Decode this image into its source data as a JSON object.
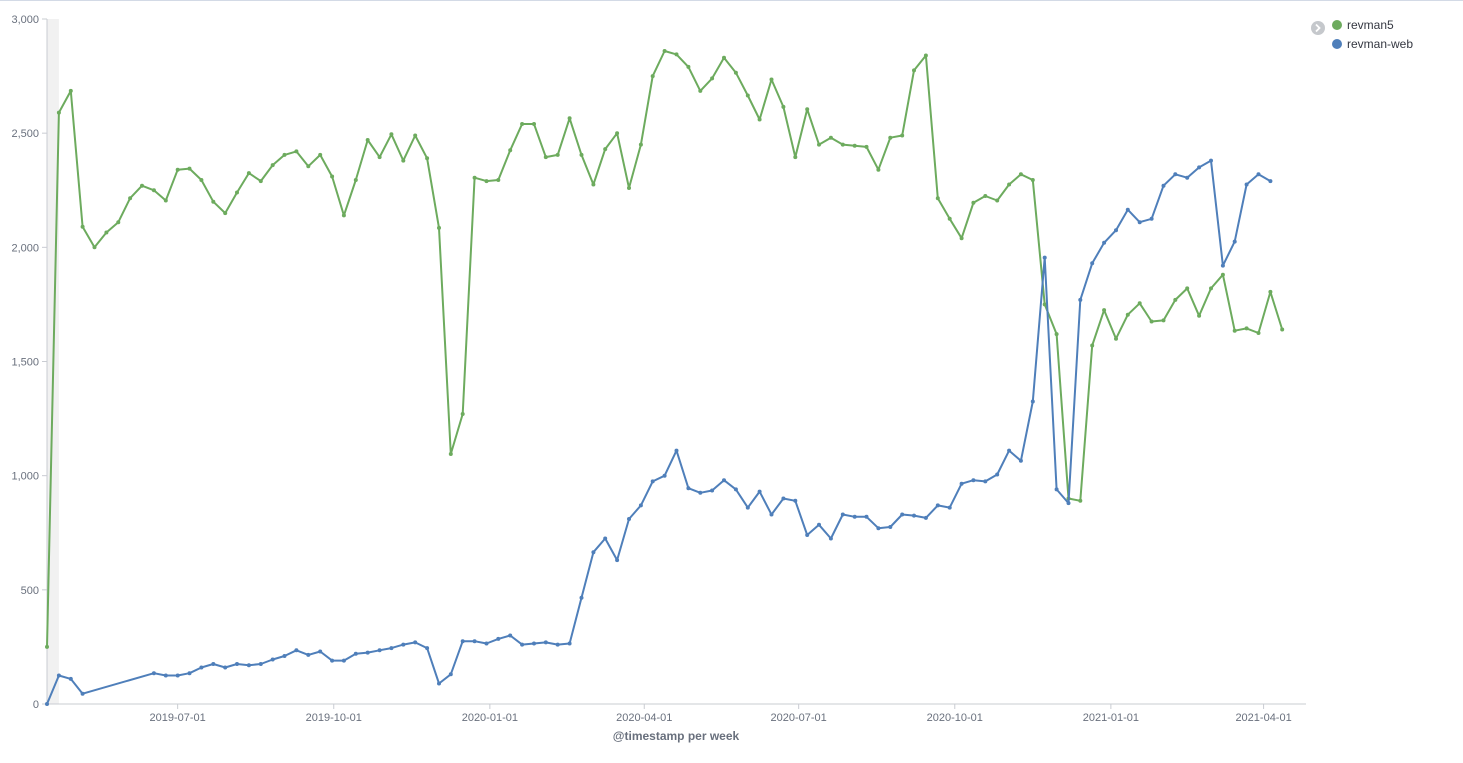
{
  "chart_data": {
    "type": "line",
    "xlabel": "@timestamp per week",
    "ylabel": "",
    "ylim": [
      0,
      3000
    ],
    "x_range": [
      "2019-04-15",
      "2021-04-26"
    ],
    "y_ticks": [
      {
        "value": 0,
        "label": "0"
      },
      {
        "value": 500,
        "label": "500"
      },
      {
        "value": 1000,
        "label": "1,000"
      },
      {
        "value": 1500,
        "label": "1,500"
      },
      {
        "value": 2000,
        "label": "2,000"
      },
      {
        "value": 2500,
        "label": "2,500"
      },
      {
        "value": 3000,
        "label": "3,000"
      }
    ],
    "x_ticks": [
      {
        "value": "2019-07-01",
        "label": "2019-07-01"
      },
      {
        "value": "2019-10-01",
        "label": "2019-10-01"
      },
      {
        "value": "2020-01-01",
        "label": "2020-01-01"
      },
      {
        "value": "2020-04-01",
        "label": "2020-04-01"
      },
      {
        "value": "2020-07-01",
        "label": "2020-07-01"
      },
      {
        "value": "2020-10-01",
        "label": "2020-10-01"
      },
      {
        "value": "2021-01-01",
        "label": "2021-01-01"
      },
      {
        "value": "2021-04-01",
        "label": "2021-04-01"
      }
    ],
    "grid": false,
    "legend_position": "top-right",
    "partial_bucket_start": "2019-04-15",
    "partial_bucket_end": "2019-04-22",
    "series": [
      {
        "name": "revman5",
        "color": "#6dab5e",
        "points": [
          [
            "2019-04-15",
            250
          ],
          [
            "2019-04-22",
            2590
          ],
          [
            "2019-04-29",
            2685
          ],
          [
            "2019-05-06",
            2090
          ],
          [
            "2019-05-13",
            2000
          ],
          [
            "2019-05-20",
            2065
          ],
          [
            "2019-05-27",
            2110
          ],
          [
            "2019-06-03",
            2215
          ],
          [
            "2019-06-10",
            2270
          ],
          [
            "2019-06-17",
            2250
          ],
          [
            "2019-06-24",
            2205
          ],
          [
            "2019-07-01",
            2340
          ],
          [
            "2019-07-08",
            2345
          ],
          [
            "2019-07-15",
            2295
          ],
          [
            "2019-07-22",
            2200
          ],
          [
            "2019-07-29",
            2150
          ],
          [
            "2019-08-05",
            2240
          ],
          [
            "2019-08-12",
            2325
          ],
          [
            "2019-08-19",
            2290
          ],
          [
            "2019-08-26",
            2360
          ],
          [
            "2019-09-02",
            2405
          ],
          [
            "2019-09-09",
            2420
          ],
          [
            "2019-09-16",
            2355
          ],
          [
            "2019-09-23",
            2405
          ],
          [
            "2019-09-30",
            2310
          ],
          [
            "2019-10-07",
            2140
          ],
          [
            "2019-10-14",
            2295
          ],
          [
            "2019-10-21",
            2470
          ],
          [
            "2019-10-28",
            2395
          ],
          [
            "2019-11-04",
            2495
          ],
          [
            "2019-11-11",
            2380
          ],
          [
            "2019-11-18",
            2490
          ],
          [
            "2019-11-25",
            2390
          ],
          [
            "2019-12-02",
            2085
          ],
          [
            "2019-12-09",
            1095
          ],
          [
            "2019-12-16",
            1270
          ],
          [
            "2019-12-23",
            2305
          ],
          [
            "2019-12-30",
            2290
          ],
          [
            "2020-01-06",
            2295
          ],
          [
            "2020-01-13",
            2425
          ],
          [
            "2020-01-20",
            2540
          ],
          [
            "2020-01-27",
            2540
          ],
          [
            "2020-02-03",
            2395
          ],
          [
            "2020-02-10",
            2405
          ],
          [
            "2020-02-17",
            2565
          ],
          [
            "2020-02-24",
            2405
          ],
          [
            "2020-03-02",
            2275
          ],
          [
            "2020-03-09",
            2430
          ],
          [
            "2020-03-16",
            2500
          ],
          [
            "2020-03-23",
            2260
          ],
          [
            "2020-03-30",
            2450
          ],
          [
            "2020-04-06",
            2750
          ],
          [
            "2020-04-13",
            2860
          ],
          [
            "2020-04-20",
            2845
          ],
          [
            "2020-04-27",
            2790
          ],
          [
            "2020-05-04",
            2685
          ],
          [
            "2020-05-11",
            2740
          ],
          [
            "2020-05-18",
            2830
          ],
          [
            "2020-05-25",
            2765
          ],
          [
            "2020-06-01",
            2665
          ],
          [
            "2020-06-08",
            2560
          ],
          [
            "2020-06-15",
            2735
          ],
          [
            "2020-06-22",
            2615
          ],
          [
            "2020-06-29",
            2395
          ],
          [
            "2020-07-06",
            2605
          ],
          [
            "2020-07-13",
            2450
          ],
          [
            "2020-07-20",
            2480
          ],
          [
            "2020-07-27",
            2450
          ],
          [
            "2020-08-03",
            2445
          ],
          [
            "2020-08-10",
            2440
          ],
          [
            "2020-08-17",
            2340
          ],
          [
            "2020-08-24",
            2480
          ],
          [
            "2020-08-31",
            2490
          ],
          [
            "2020-09-07",
            2775
          ],
          [
            "2020-09-14",
            2840
          ],
          [
            "2020-09-21",
            2215
          ],
          [
            "2020-09-28",
            2125
          ],
          [
            "2020-10-05",
            2040
          ],
          [
            "2020-10-12",
            2195
          ],
          [
            "2020-10-19",
            2225
          ],
          [
            "2020-10-26",
            2205
          ],
          [
            "2020-11-02",
            2275
          ],
          [
            "2020-11-09",
            2320
          ],
          [
            "2020-11-16",
            2295
          ],
          [
            "2020-11-23",
            1750
          ],
          [
            "2020-11-30",
            1620
          ],
          [
            "2020-12-07",
            900
          ],
          [
            "2020-12-14",
            890
          ],
          [
            "2020-12-21",
            1570
          ],
          [
            "2020-12-28",
            1725
          ],
          [
            "2021-01-04",
            1600
          ],
          [
            "2021-01-11",
            1705
          ],
          [
            "2021-01-18",
            1755
          ],
          [
            "2021-01-25",
            1675
          ],
          [
            "2021-02-01",
            1680
          ],
          [
            "2021-02-08",
            1770
          ],
          [
            "2021-02-15",
            1820
          ],
          [
            "2021-02-22",
            1700
          ],
          [
            "2021-03-01",
            1820
          ],
          [
            "2021-03-08",
            1880
          ],
          [
            "2021-03-15",
            1635
          ],
          [
            "2021-03-22",
            1645
          ],
          [
            "2021-03-29",
            1625
          ],
          [
            "2021-04-05",
            1805
          ],
          [
            "2021-04-12",
            1640
          ]
        ]
      },
      {
        "name": "revman-web",
        "color": "#4f7fba",
        "points": [
          [
            "2019-04-15",
            0
          ],
          [
            "2019-04-22",
            125
          ],
          [
            "2019-04-29",
            110
          ],
          [
            "2019-05-06",
            45
          ],
          [
            "2019-06-17",
            135
          ],
          [
            "2019-06-24",
            125
          ],
          [
            "2019-07-01",
            125
          ],
          [
            "2019-07-08",
            135
          ],
          [
            "2019-07-15",
            160
          ],
          [
            "2019-07-22",
            175
          ],
          [
            "2019-07-29",
            160
          ],
          [
            "2019-08-05",
            175
          ],
          [
            "2019-08-12",
            170
          ],
          [
            "2019-08-19",
            175
          ],
          [
            "2019-08-26",
            195
          ],
          [
            "2019-09-02",
            210
          ],
          [
            "2019-09-09",
            235
          ],
          [
            "2019-09-16",
            215
          ],
          [
            "2019-09-23",
            230
          ],
          [
            "2019-09-30",
            190
          ],
          [
            "2019-10-07",
            190
          ],
          [
            "2019-10-14",
            220
          ],
          [
            "2019-10-21",
            225
          ],
          [
            "2019-10-28",
            235
          ],
          [
            "2019-11-04",
            245
          ],
          [
            "2019-11-11",
            260
          ],
          [
            "2019-11-18",
            270
          ],
          [
            "2019-11-25",
            245
          ],
          [
            "2019-12-02",
            90
          ],
          [
            "2019-12-09",
            130
          ],
          [
            "2019-12-16",
            275
          ],
          [
            "2019-12-23",
            275
          ],
          [
            "2019-12-30",
            265
          ],
          [
            "2020-01-06",
            285
          ],
          [
            "2020-01-13",
            300
          ],
          [
            "2020-01-20",
            260
          ],
          [
            "2020-01-27",
            265
          ],
          [
            "2020-02-03",
            270
          ],
          [
            "2020-02-10",
            260
          ],
          [
            "2020-02-17",
            265
          ],
          [
            "2020-02-24",
            465
          ],
          [
            "2020-03-02",
            665
          ],
          [
            "2020-03-09",
            725
          ],
          [
            "2020-03-16",
            630
          ],
          [
            "2020-03-23",
            810
          ],
          [
            "2020-03-30",
            870
          ],
          [
            "2020-04-06",
            975
          ],
          [
            "2020-04-13",
            1000
          ],
          [
            "2020-04-20",
            1110
          ],
          [
            "2020-04-27",
            945
          ],
          [
            "2020-05-04",
            925
          ],
          [
            "2020-05-11",
            935
          ],
          [
            "2020-05-18",
            980
          ],
          [
            "2020-05-25",
            940
          ],
          [
            "2020-06-01",
            860
          ],
          [
            "2020-06-08",
            930
          ],
          [
            "2020-06-15",
            830
          ],
          [
            "2020-06-22",
            900
          ],
          [
            "2020-06-29",
            890
          ],
          [
            "2020-07-06",
            740
          ],
          [
            "2020-07-13",
            785
          ],
          [
            "2020-07-20",
            725
          ],
          [
            "2020-07-27",
            830
          ],
          [
            "2020-08-03",
            820
          ],
          [
            "2020-08-10",
            820
          ],
          [
            "2020-08-17",
            770
          ],
          [
            "2020-08-24",
            775
          ],
          [
            "2020-08-31",
            830
          ],
          [
            "2020-09-07",
            825
          ],
          [
            "2020-09-14",
            815
          ],
          [
            "2020-09-21",
            870
          ],
          [
            "2020-09-28",
            860
          ],
          [
            "2020-10-05",
            965
          ],
          [
            "2020-10-12",
            980
          ],
          [
            "2020-10-19",
            975
          ],
          [
            "2020-10-26",
            1005
          ],
          [
            "2020-11-02",
            1110
          ],
          [
            "2020-11-09",
            1065
          ],
          [
            "2020-11-16",
            1325
          ],
          [
            "2020-11-23",
            1955
          ],
          [
            "2020-11-30",
            940
          ],
          [
            "2020-12-07",
            880
          ],
          [
            "2020-12-14",
            1770
          ],
          [
            "2020-12-21",
            1930
          ],
          [
            "2020-12-28",
            2020
          ],
          [
            "2021-01-04",
            2075
          ],
          [
            "2021-01-11",
            2165
          ],
          [
            "2021-01-18",
            2110
          ],
          [
            "2021-01-25",
            2125
          ],
          [
            "2021-02-01",
            2270
          ],
          [
            "2021-02-08",
            2320
          ],
          [
            "2021-02-15",
            2305
          ],
          [
            "2021-02-22",
            2350
          ],
          [
            "2021-03-01",
            2380
          ],
          [
            "2021-03-08",
            1920
          ],
          [
            "2021-03-15",
            2025
          ],
          [
            "2021-03-22",
            2275
          ],
          [
            "2021-03-29",
            2320
          ],
          [
            "2021-04-05",
            2290
          ]
        ]
      }
    ]
  },
  "legend": {
    "toggle_icon": "chevron-right-circle-icon"
  }
}
